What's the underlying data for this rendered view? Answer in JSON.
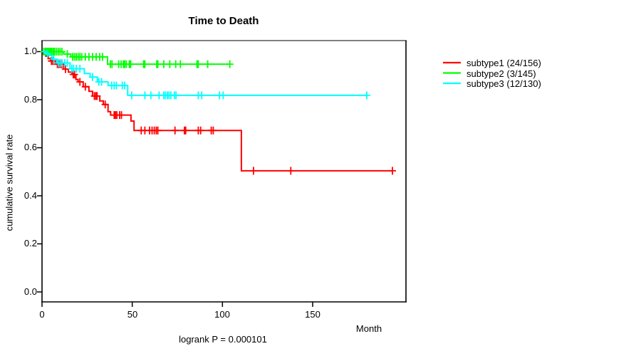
{
  "title": "Time to Death",
  "axes": {
    "ylabel": "cumulative survival rate",
    "xlabel": "Month",
    "ytick_labels": [
      "1.0",
      "0.8",
      "0.6",
      "0.4",
      "0.2",
      "0.0"
    ],
    "xtick_labels": [
      "0",
      "50",
      "100",
      "150"
    ]
  },
  "annotation": "logrank P = 0.000101",
  "legend": [
    {
      "label": "subtype1 (24/156)",
      "color": "#ff0000"
    },
    {
      "label": "subtype2 (3/145)",
      "color": "#00ff00"
    },
    {
      "label": "subtype3 (12/130)",
      "color": "#00ffff"
    }
  ],
  "chart_data": {
    "type": "line",
    "subtype": "kaplan-meier-step-curves",
    "title": "Time to Death",
    "xlabel": "Month",
    "ylabel": "cumulative survival rate",
    "annotation": "logrank P = 0.000101",
    "xlim": [
      0,
      202
    ],
    "ylim": [
      0,
      1
    ],
    "xticks": [
      0,
      50,
      100,
      150
    ],
    "yticks": [
      1.0,
      0.8,
      0.6,
      0.4,
      0.2,
      0.0
    ],
    "grid": false,
    "legend_position": "right-outside",
    "series": [
      {
        "name": "subtype1 (24/156)",
        "color": "#ff0000",
        "events": "24/156",
        "end_month": 194.2,
        "steps": [
          [
            0,
            1.0
          ],
          [
            0.8,
            0.99
          ],
          [
            2.1,
            0.981
          ],
          [
            3.4,
            0.971
          ],
          [
            4.7,
            0.961
          ],
          [
            7.4,
            0.948
          ],
          [
            12,
            0.927
          ],
          [
            14.6,
            0.915
          ],
          [
            16.6,
            0.905
          ],
          [
            18.8,
            0.884
          ],
          [
            20,
            0.874
          ],
          [
            22.8,
            0.854
          ],
          [
            26,
            0.835
          ],
          [
            28,
            0.815
          ],
          [
            32,
            0.795
          ],
          [
            34,
            0.78
          ],
          [
            36.6,
            0.75
          ],
          [
            38,
            0.736
          ],
          [
            49.3,
            0.711
          ],
          [
            51,
            0.672
          ],
          [
            110.5,
            0.504
          ]
        ],
        "censors": [
          [
            5.2,
            0.961
          ],
          [
            6,
            0.961
          ],
          [
            8.5,
            0.948
          ],
          [
            9.3,
            0.948
          ],
          [
            10.2,
            0.948
          ],
          [
            11,
            0.948
          ],
          [
            13,
            0.927
          ],
          [
            17.3,
            0.905
          ],
          [
            18,
            0.905
          ],
          [
            21,
            0.874
          ],
          [
            24,
            0.854
          ],
          [
            29,
            0.815
          ],
          [
            29.8,
            0.815
          ],
          [
            30.5,
            0.815
          ],
          [
            35,
            0.78
          ],
          [
            40,
            0.736
          ],
          [
            40.7,
            0.736
          ],
          [
            41.5,
            0.736
          ],
          [
            43,
            0.736
          ],
          [
            44,
            0.736
          ],
          [
            55,
            0.672
          ],
          [
            57,
            0.672
          ],
          [
            59.6,
            0.672
          ],
          [
            61,
            0.672
          ],
          [
            62.2,
            0.672
          ],
          [
            63.3,
            0.672
          ],
          [
            64.2,
            0.672
          ],
          [
            73.7,
            0.672
          ],
          [
            78.9,
            0.672
          ],
          [
            79.6,
            0.672
          ],
          [
            86.6,
            0.672
          ],
          [
            87.9,
            0.672
          ],
          [
            93.8,
            0.672
          ],
          [
            94.9,
            0.672
          ],
          [
            117.2,
            0.504
          ],
          [
            137.9,
            0.504
          ],
          [
            194.2,
            0.504
          ]
        ]
      },
      {
        "name": "subtype2 (3/145)",
        "color": "#00ff00",
        "events": "3/145",
        "end_month": 104.2,
        "steps": [
          [
            0,
            1.0
          ],
          [
            12,
            0.99
          ],
          [
            16,
            0.978
          ],
          [
            36.3,
            0.948
          ]
        ],
        "censors": [
          [
            1,
            1
          ],
          [
            1.8,
            1
          ],
          [
            2.4,
            1
          ],
          [
            3,
            1
          ],
          [
            3.6,
            1
          ],
          [
            4.2,
            1
          ],
          [
            4.8,
            1
          ],
          [
            5.5,
            1
          ],
          [
            6.3,
            1
          ],
          [
            7,
            1
          ],
          [
            8,
            1
          ],
          [
            9,
            1
          ],
          [
            10,
            1
          ],
          [
            11,
            1
          ],
          [
            14,
            0.99
          ],
          [
            17,
            0.978
          ],
          [
            18,
            0.978
          ],
          [
            19,
            0.978
          ],
          [
            20,
            0.978
          ],
          [
            21,
            0.978
          ],
          [
            22,
            0.978
          ],
          [
            24,
            0.978
          ],
          [
            26,
            0.978
          ],
          [
            28,
            0.978
          ],
          [
            30,
            0.978
          ],
          [
            32,
            0.978
          ],
          [
            33.5,
            0.978
          ],
          [
            37.9,
            0.948
          ],
          [
            38.8,
            0.948
          ],
          [
            42.5,
            0.948
          ],
          [
            43.8,
            0.948
          ],
          [
            45.1,
            0.948
          ],
          [
            45.8,
            0.948
          ],
          [
            46.7,
            0.948
          ],
          [
            48.4,
            0.948
          ],
          [
            49.1,
            0.948
          ],
          [
            56.3,
            0.948
          ],
          [
            57,
            0.948
          ],
          [
            63.6,
            0.948
          ],
          [
            64.2,
            0.948
          ],
          [
            67.5,
            0.948
          ],
          [
            70.8,
            0.948
          ],
          [
            74.1,
            0.948
          ],
          [
            76.7,
            0.948
          ],
          [
            85.9,
            0.948
          ],
          [
            86.6,
            0.948
          ],
          [
            91.8,
            0.948
          ],
          [
            104.1,
            0.948
          ]
        ]
      },
      {
        "name": "subtype3 (12/130)",
        "color": "#00ffff",
        "events": "12/130",
        "end_month": 180,
        "steps": [
          [
            0,
            1.0
          ],
          [
            2,
            0.992
          ],
          [
            4,
            0.984
          ],
          [
            5.6,
            0.969
          ],
          [
            8.3,
            0.953
          ],
          [
            15.5,
            0.929
          ],
          [
            23.4,
            0.909
          ],
          [
            26.7,
            0.894
          ],
          [
            30.7,
            0.874
          ],
          [
            36.6,
            0.859
          ],
          [
            47.5,
            0.818
          ]
        ],
        "censors": [
          [
            3,
            0.992
          ],
          [
            6.5,
            0.969
          ],
          [
            9,
            0.953
          ],
          [
            10,
            0.953
          ],
          [
            11,
            0.953
          ],
          [
            12.5,
            0.953
          ],
          [
            14,
            0.953
          ],
          [
            16.5,
            0.929
          ],
          [
            17.5,
            0.929
          ],
          [
            19,
            0.929
          ],
          [
            21,
            0.929
          ],
          [
            28,
            0.894
          ],
          [
            31.5,
            0.874
          ],
          [
            33,
            0.874
          ],
          [
            38.6,
            0.859
          ],
          [
            40,
            0.859
          ],
          [
            41.2,
            0.859
          ],
          [
            44.5,
            0.859
          ],
          [
            45.8,
            0.859
          ],
          [
            49.7,
            0.818
          ],
          [
            57,
            0.818
          ],
          [
            60.3,
            0.818
          ],
          [
            64.9,
            0.818
          ],
          [
            67.5,
            0.818
          ],
          [
            68.4,
            0.818
          ],
          [
            69.5,
            0.818
          ],
          [
            70.4,
            0.818
          ],
          [
            71.4,
            0.818
          ],
          [
            73.4,
            0.818
          ],
          [
            74.3,
            0.818
          ],
          [
            86.6,
            0.818
          ],
          [
            88.5,
            0.818
          ],
          [
            98.4,
            0.818
          ],
          [
            100.4,
            0.818
          ],
          [
            180,
            0.818
          ]
        ]
      }
    ]
  }
}
